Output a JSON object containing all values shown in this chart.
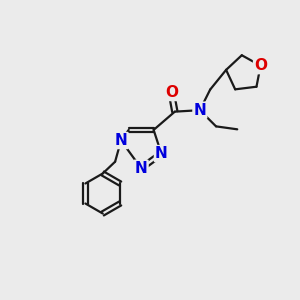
{
  "background_color": "#ebebeb",
  "bond_color": "#1a1a1a",
  "bond_width": 1.6,
  "atom_colors": {
    "N": "#0000dd",
    "O": "#dd0000",
    "C": "#1a1a1a"
  },
  "font_size_atom": 11
}
